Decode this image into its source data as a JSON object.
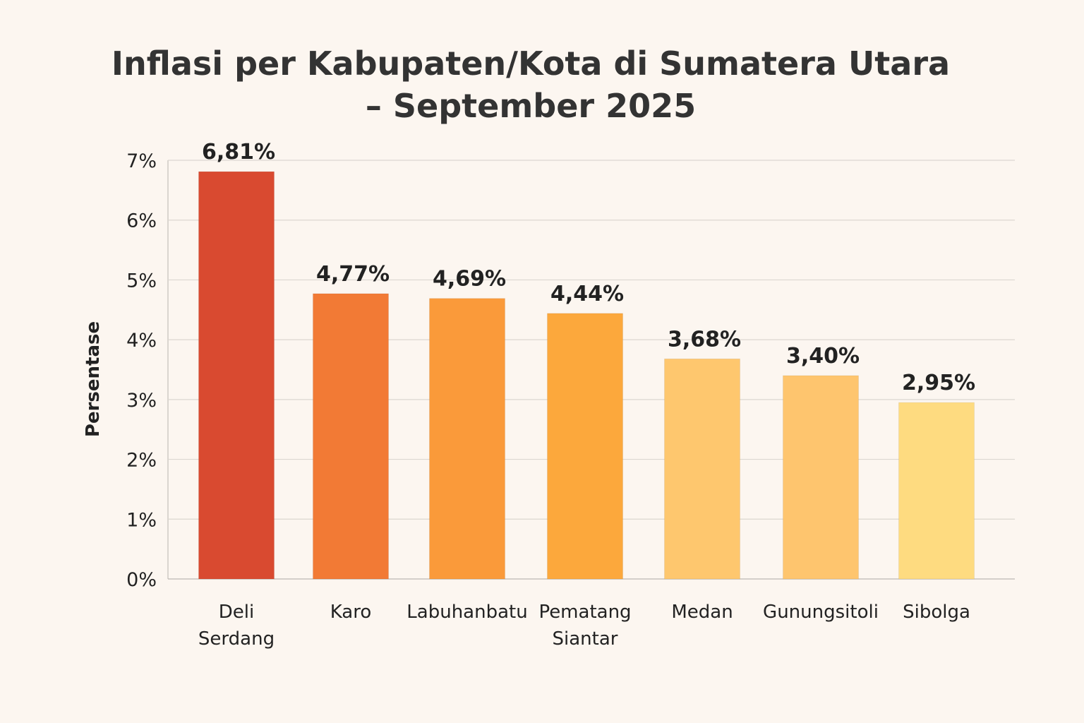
{
  "chart_data": {
    "type": "bar",
    "title": [
      "Inflasi per Kabupaten/Kota di Sumatera Utara",
      "– September 2025"
    ],
    "xlabel": "",
    "ylabel": "Persentase",
    "ylim": [
      0,
      7
    ],
    "yticks": [
      0,
      1,
      2,
      3,
      4,
      5,
      6,
      7
    ],
    "ytick_labels": [
      "0%",
      "1%",
      "2%",
      "3%",
      "4%",
      "5%",
      "6%",
      "7%"
    ],
    "grid": true,
    "categories": [
      [
        "Deli",
        "Serdang"
      ],
      [
        "Karo"
      ],
      [
        "Labuhanbatu"
      ],
      [
        "Pematang",
        "Siantar"
      ],
      [
        "Medan"
      ],
      [
        "Gunungsitoli"
      ],
      [
        "Sibolga"
      ]
    ],
    "values": [
      6.81,
      4.77,
      4.69,
      4.44,
      3.68,
      3.4,
      2.95
    ],
    "data_labels": [
      "6,81%",
      "4,77%",
      "4,69%",
      "4,44%",
      "3,68%",
      "3,40%",
      "2,95%"
    ],
    "colors": [
      "#D94A30",
      "#F27A35",
      "#FA9A3A",
      "#FCA83C",
      "#FEC76E",
      "#FEC56E",
      "#FEDB80"
    ]
  }
}
